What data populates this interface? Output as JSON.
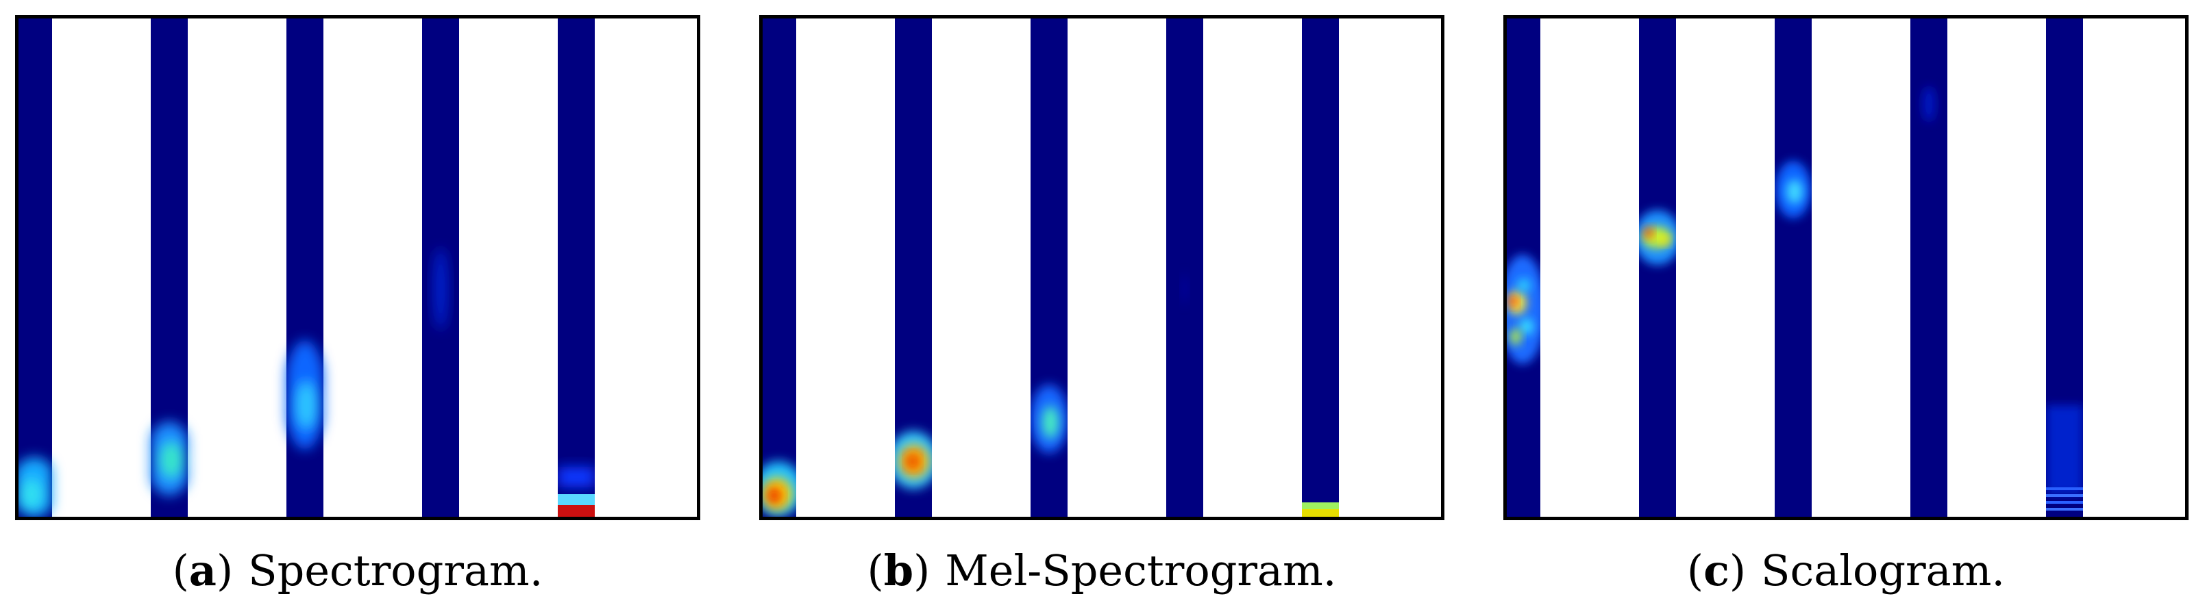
{
  "figure": {
    "panels": [
      {
        "id": "a",
        "letter": "a",
        "title": "Spectrogram."
      },
      {
        "id": "b",
        "letter": "b",
        "title": "Mel-Spectrogram."
      },
      {
        "id": "c",
        "letter": "c",
        "title": "Scalogram."
      }
    ]
  },
  "colors": {
    "background": "#000080",
    "strip_white": "#ffffff",
    "frame": "#000000",
    "colormap": "jet"
  }
}
